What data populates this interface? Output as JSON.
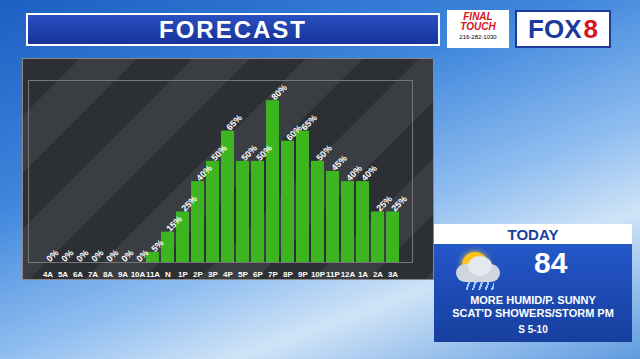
{
  "header": {
    "title": "FORECAST",
    "sponsor": {
      "name": "FINAL TOUCH",
      "phone": "216-282-1030"
    },
    "logo": {
      "network": "FOX",
      "channel": "8"
    }
  },
  "today": {
    "label": "TODAY",
    "temperature": 84,
    "conditions": [
      "MORE HUMID/P. SUNNY",
      "SCAT'D SHOWERS/STORM PM"
    ],
    "wind": "S 5-10"
  },
  "chart_data": {
    "type": "bar",
    "categories": [
      "4A",
      "5A",
      "6A",
      "7A",
      "8A",
      "9A",
      "10A",
      "11A",
      "N",
      "1P",
      "2P",
      "3P",
      "4P",
      "5P",
      "6P",
      "7P",
      "8P",
      "9P",
      "10P",
      "11P",
      "12A",
      "1A",
      "2A",
      "3A"
    ],
    "values": [
      0,
      0,
      0,
      0,
      0,
      0,
      0,
      5,
      15,
      25,
      40,
      50,
      65,
      50,
      50,
      80,
      60,
      65,
      50,
      45,
      40,
      40,
      25,
      25
    ],
    "value_labels": [
      "0%",
      "0%",
      "0%",
      "0%",
      "0%",
      "0%",
      "0%",
      "5%",
      "15%",
      "25%",
      "40%",
      "50%",
      "65%",
      "50%",
      "50%",
      "80%",
      "60%",
      "65%",
      "50%",
      "45%",
      "40%",
      "40%",
      "25%",
      "25%"
    ],
    "color": "#3cb521",
    "ylim": [
      0,
      90
    ],
    "grid": false,
    "data_labels": true,
    "tick_labels": "x"
  }
}
